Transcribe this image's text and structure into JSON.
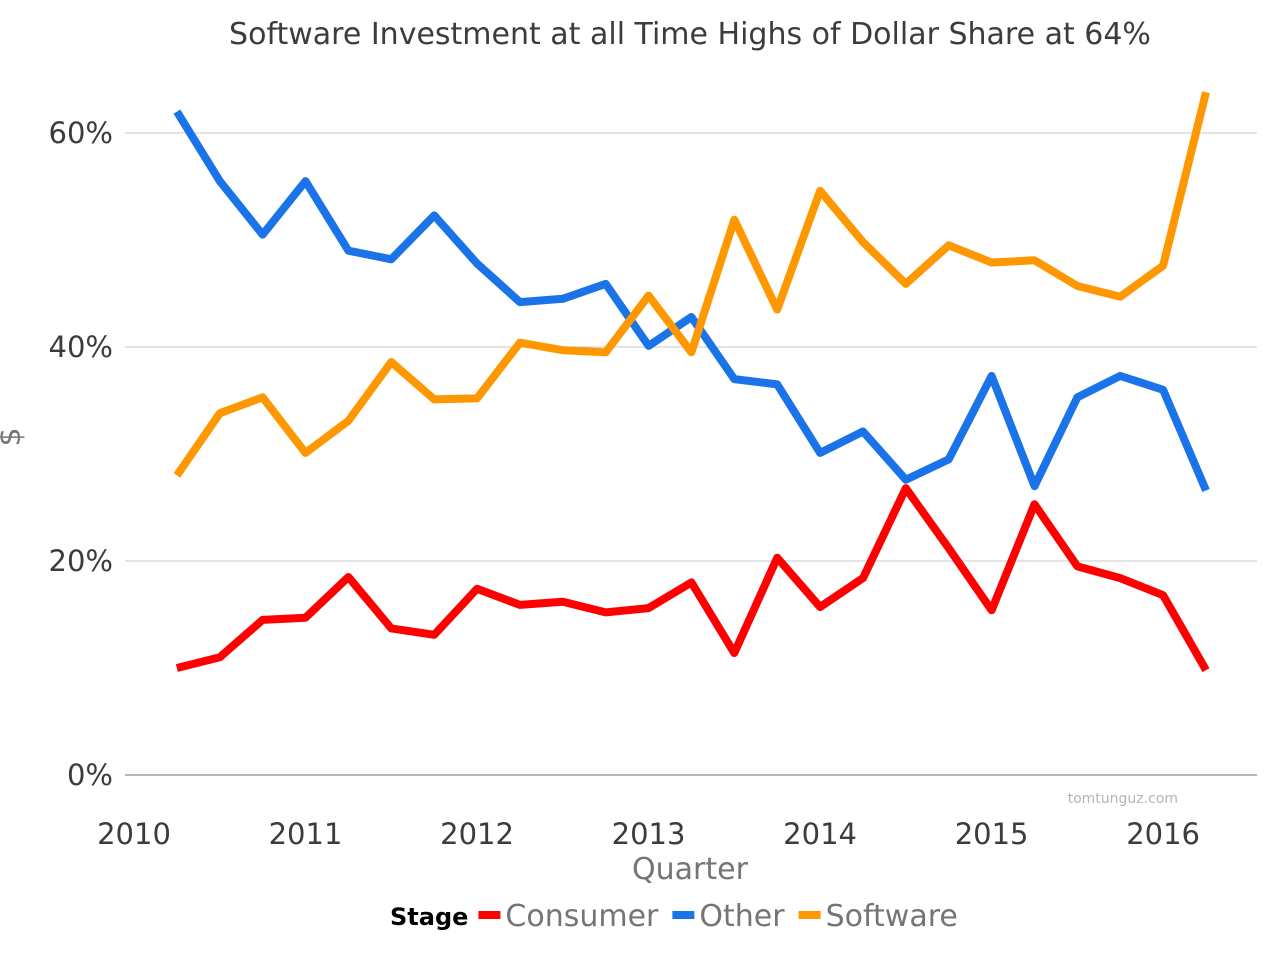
{
  "chart_data": {
    "type": "line",
    "title": "Software Investment at all Time Highs of Dollar Share at 64%",
    "xlabel": "Quarter",
    "ylabel": "$",
    "xlim": [
      2010,
      2016.3
    ],
    "ylim": [
      0,
      0.66
    ],
    "x_ticks": [
      {
        "value": 2010,
        "label": "2010"
      },
      {
        "value": 2011,
        "label": "2011"
      },
      {
        "value": 2012,
        "label": "2012"
      },
      {
        "value": 2013,
        "label": "2013"
      },
      {
        "value": 2014,
        "label": "2014"
      },
      {
        "value": 2015,
        "label": "2015"
      },
      {
        "value": 2016,
        "label": "2016"
      }
    ],
    "y_ticks": [
      {
        "value": 0,
        "label": "0%"
      },
      {
        "value": 0.2,
        "label": "20%"
      },
      {
        "value": 0.4,
        "label": "40%"
      },
      {
        "value": 0.6,
        "label": "60%"
      }
    ],
    "grid": true,
    "legend": {
      "title": "Stage",
      "placement": "bottom"
    },
    "watermark": "tomtunguz.com",
    "x": [
      2010.25,
      2010.5,
      2010.75,
      2011.0,
      2011.25,
      2011.5,
      2011.75,
      2012.0,
      2012.25,
      2012.5,
      2012.75,
      2013.0,
      2013.25,
      2013.5,
      2013.75,
      2014.0,
      2014.25,
      2014.5,
      2014.75,
      2015.0,
      2015.25,
      2015.5,
      2015.75,
      2016.0,
      2016.25
    ],
    "series": [
      {
        "name": "Consumer",
        "color": "#ff0000",
        "values": [
          0.1,
          0.11,
          0.145,
          0.147,
          0.185,
          0.137,
          0.131,
          0.174,
          0.159,
          0.162,
          0.152,
          0.156,
          0.18,
          0.114,
          0.203,
          0.157,
          0.184,
          0.268,
          0.212,
          0.154,
          0.253,
          0.195,
          0.184,
          0.168,
          0.098
        ]
      },
      {
        "name": "Other",
        "color": "#1a73e8",
        "values": [
          0.62,
          0.555,
          0.505,
          0.555,
          0.49,
          0.482,
          0.523,
          0.478,
          0.442,
          0.445,
          0.459,
          0.401,
          0.428,
          0.37,
          0.365,
          0.301,
          0.321,
          0.276,
          0.295,
          0.373,
          0.27,
          0.353,
          0.373,
          0.36,
          0.266
        ]
      },
      {
        "name": "Software",
        "color": "#ff9800",
        "values": [
          0.28,
          0.338,
          0.353,
          0.301,
          0.331,
          0.386,
          0.351,
          0.352,
          0.404,
          0.397,
          0.395,
          0.448,
          0.395,
          0.519,
          0.435,
          0.546,
          0.498,
          0.459,
          0.495,
          0.479,
          0.481,
          0.457,
          0.447,
          0.476,
          0.638
        ]
      }
    ]
  }
}
